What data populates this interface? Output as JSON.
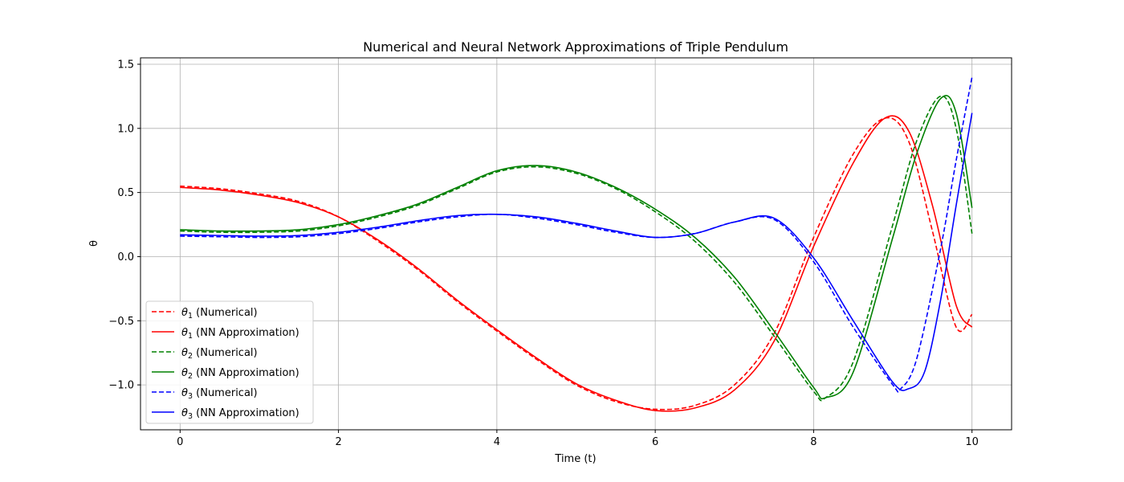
{
  "chart_data": {
    "type": "line",
    "title": "Numerical and Neural Network Approximations of Triple Pendulum",
    "xlabel": "Time (t)",
    "ylabel": "θ",
    "xlim": [
      -0.5,
      10.5
    ],
    "ylim": [
      -1.35,
      1.55
    ],
    "xticks": [
      0,
      2,
      4,
      6,
      8,
      10
    ],
    "xtick_labels": [
      "0",
      "2",
      "4",
      "6",
      "8",
      "10"
    ],
    "yticks": [
      -1.0,
      -0.5,
      0.0,
      0.5,
      1.0,
      1.5
    ],
    "ytick_labels": [
      "−1.0",
      "−0.5",
      "0.0",
      "0.5",
      "1.0",
      "1.5"
    ],
    "grid": true,
    "legend_position": "lower-left",
    "series": [
      {
        "name": "θ1 (Numerical)",
        "symbol": "θ",
        "subscript": "1",
        "suffix": " (Numerical)",
        "color": "#ff0000",
        "style": "dashed",
        "x": [
          0,
          0.5,
          1,
          1.5,
          2,
          2.5,
          3,
          3.5,
          4,
          4.5,
          5,
          5.5,
          6,
          6.5,
          7,
          7.5,
          8,
          8.5,
          8.9,
          9.2,
          9.5,
          9.8,
          10
        ],
        "y": [
          0.55,
          0.53,
          0.49,
          0.43,
          0.31,
          0.12,
          -0.1,
          -0.35,
          -0.58,
          -0.8,
          -1.0,
          -1.13,
          -1.19,
          -1.16,
          -1.0,
          -0.6,
          0.15,
          0.8,
          1.08,
          0.9,
          0.2,
          -0.55,
          -0.45
        ]
      },
      {
        "name": "θ1 (NN Approximation)",
        "symbol": "θ",
        "subscript": "1",
        "suffix": " (NN Approximation)",
        "color": "#ff0000",
        "style": "solid",
        "x": [
          0,
          0.5,
          1,
          1.5,
          2,
          2.5,
          3,
          3.5,
          4,
          4.5,
          5,
          5.5,
          6,
          6.5,
          7,
          7.5,
          8,
          8.5,
          8.9,
          9.2,
          9.5,
          9.8,
          10
        ],
        "y": [
          0.54,
          0.52,
          0.48,
          0.42,
          0.31,
          0.13,
          -0.09,
          -0.34,
          -0.57,
          -0.79,
          -0.99,
          -1.12,
          -1.2,
          -1.18,
          -1.04,
          -0.66,
          0.08,
          0.73,
          1.08,
          0.98,
          0.4,
          -0.38,
          -0.55
        ]
      },
      {
        "name": "θ2 (Numerical)",
        "symbol": "θ",
        "subscript": "2",
        "suffix": " (Numerical)",
        "color": "#008000",
        "style": "dashed",
        "x": [
          0,
          0.5,
          1,
          1.5,
          2,
          2.5,
          3,
          3.5,
          4,
          4.5,
          5,
          5.5,
          6,
          6.5,
          7,
          7.5,
          8,
          8.15,
          8.5,
          9,
          9.3,
          9.6,
          9.8,
          10
        ],
        "y": [
          0.2,
          0.19,
          0.19,
          0.2,
          0.24,
          0.31,
          0.4,
          0.53,
          0.66,
          0.7,
          0.65,
          0.53,
          0.35,
          0.12,
          -0.2,
          -0.62,
          -1.05,
          -1.1,
          -0.82,
          0.25,
          0.9,
          1.25,
          1.0,
          0.18
        ]
      },
      {
        "name": "θ2 (NN Approximation)",
        "symbol": "θ",
        "subscript": "2",
        "suffix": " (NN Approximation)",
        "color": "#008000",
        "style": "solid",
        "x": [
          0,
          0.5,
          1,
          1.5,
          2,
          2.5,
          3,
          3.5,
          4,
          4.5,
          5,
          5.5,
          6,
          6.5,
          7,
          7.5,
          8,
          8.15,
          8.5,
          9,
          9.3,
          9.6,
          9.8,
          10
        ],
        "y": [
          0.21,
          0.2,
          0.2,
          0.21,
          0.25,
          0.32,
          0.41,
          0.54,
          0.67,
          0.71,
          0.66,
          0.54,
          0.37,
          0.15,
          -0.16,
          -0.58,
          -1.02,
          -1.1,
          -0.9,
          0.15,
          0.8,
          1.23,
          1.12,
          0.38
        ]
      },
      {
        "name": "θ3 (Numerical)",
        "symbol": "θ",
        "subscript": "3",
        "suffix": " (Numerical)",
        "color": "#0000ff",
        "style": "dashed",
        "x": [
          0,
          0.5,
          1,
          1.5,
          2,
          2.5,
          3,
          3.5,
          4,
          4.5,
          5,
          5.5,
          6,
          6.5,
          7,
          7.5,
          8,
          8.5,
          9,
          9.1,
          9.3,
          9.6,
          9.8,
          10
        ],
        "y": [
          0.16,
          0.155,
          0.15,
          0.155,
          0.18,
          0.22,
          0.27,
          0.31,
          0.33,
          0.3,
          0.25,
          0.19,
          0.15,
          0.18,
          0.27,
          0.29,
          -0.04,
          -0.55,
          -1.0,
          -1.03,
          -0.8,
          0.05,
          0.75,
          1.4
        ]
      },
      {
        "name": "θ3 (NN Approximation)",
        "symbol": "θ",
        "subscript": "3",
        "suffix": " (NN Approximation)",
        "color": "#0000ff",
        "style": "solid",
        "x": [
          0,
          0.5,
          1,
          1.5,
          2,
          2.5,
          3,
          3.5,
          4,
          4.5,
          5,
          5.5,
          6,
          6.5,
          7,
          7.5,
          8,
          8.5,
          9,
          9.2,
          9.4,
          9.6,
          9.8,
          10
        ],
        "y": [
          0.17,
          0.165,
          0.16,
          0.165,
          0.19,
          0.23,
          0.28,
          0.32,
          0.33,
          0.31,
          0.26,
          0.2,
          0.15,
          0.18,
          0.27,
          0.3,
          -0.01,
          -0.5,
          -0.98,
          -1.03,
          -0.9,
          -0.35,
          0.4,
          1.12
        ]
      }
    ]
  }
}
